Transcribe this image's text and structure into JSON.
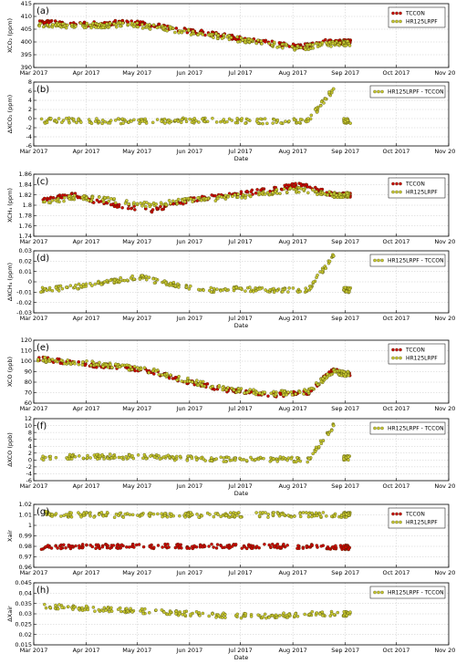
{
  "figure": {
    "date_axis_label": "Date"
  },
  "colors": {
    "tccon": "#cc0000",
    "hr125": "#c8c832",
    "diff": "#c8c832",
    "edge": "#333300"
  },
  "chart_data": [
    {
      "type": "scatter",
      "panel": "(a)",
      "ylabel": "XCO₂ (ppm)",
      "xlim": [
        "2017-03-01",
        "2017-11-01"
      ],
      "ylim": [
        390,
        415
      ],
      "yticks": [
        390,
        395,
        400,
        405,
        410,
        415
      ],
      "legend": {
        "position": "top-right",
        "entries": [
          "TCCON",
          "HR125LRPF"
        ]
      },
      "xlabel": "",
      "series": [
        {
          "name": "TCCON",
          "marker": "red",
          "x": [
            "2017-03-03",
            "2017-03-20",
            "2017-04-10",
            "2017-04-25",
            "2017-05-15",
            "2017-06-05",
            "2017-06-25",
            "2017-07-15",
            "2017-08-05",
            "2017-08-20",
            "2017-08-31"
          ],
          "y": [
            408,
            407,
            407,
            408,
            406,
            404,
            402,
            400,
            398,
            400,
            400
          ]
        },
        {
          "name": "HR125LRPF",
          "marker": "olive",
          "x": [
            "2017-03-03",
            "2017-03-20",
            "2017-04-10",
            "2017-04-25",
            "2017-05-15",
            "2017-06-05",
            "2017-06-25",
            "2017-07-15",
            "2017-08-05",
            "2017-08-20",
            "2017-08-31"
          ],
          "y": [
            407,
            406.5,
            406.5,
            407,
            405.5,
            403.5,
            401.5,
            399.5,
            397.5,
            399,
            399.5
          ]
        }
      ]
    },
    {
      "type": "scatter",
      "panel": "(b)",
      "ylabel": "ΔXCO₂ (ppm)",
      "xlim": [
        "2017-03-01",
        "2017-11-01"
      ],
      "ylim": [
        -6,
        8
      ],
      "yticks": [
        -6,
        -4,
        -2,
        0,
        2,
        4,
        6,
        8
      ],
      "legend": {
        "position": "top-right",
        "entries": [
          "HR125LRPF - TCCON"
        ]
      },
      "xlabel": "Date",
      "series": [
        {
          "name": "HR125LRPF - TCCON",
          "marker": "olive",
          "x": [
            "2017-03-05",
            "2017-03-25",
            "2017-04-15",
            "2017-05-10",
            "2017-06-01",
            "2017-06-25",
            "2017-07-20",
            "2017-08-10",
            "2017-08-25",
            "2017-08-31"
          ],
          "y": [
            -0.5,
            -0.4,
            -0.6,
            -0.5,
            -0.4,
            -0.5,
            -0.6,
            -0.5,
            6.5,
            -0.5
          ]
        }
      ]
    },
    {
      "type": "scatter",
      "panel": "(c)",
      "ylabel": "XCH₄ (ppm)",
      "xlim": [
        "2017-03-01",
        "2017-11-01"
      ],
      "ylim": [
        1.74,
        1.86
      ],
      "yticks": [
        1.74,
        1.76,
        1.78,
        1.8,
        1.82,
        1.84,
        1.86
      ],
      "legend": {
        "position": "top-right",
        "entries": [
          "TCCON",
          "HR125LRPF"
        ]
      },
      "xlabel": "",
      "series": [
        {
          "name": "TCCON",
          "marker": "red",
          "x": [
            "2017-03-05",
            "2017-03-25",
            "2017-04-15",
            "2017-05-10",
            "2017-06-01",
            "2017-06-25",
            "2017-07-20",
            "2017-08-05",
            "2017-08-25",
            "2017-08-31"
          ],
          "y": [
            1.81,
            1.82,
            1.8,
            1.79,
            1.81,
            1.82,
            1.83,
            1.84,
            1.82,
            1.82
          ]
        },
        {
          "name": "HR125LRPF",
          "marker": "olive",
          "x": [
            "2017-03-05",
            "2017-03-25",
            "2017-04-15",
            "2017-05-10",
            "2017-06-01",
            "2017-06-25",
            "2017-07-20",
            "2017-08-05",
            "2017-08-25",
            "2017-08-31"
          ],
          "y": [
            1.805,
            1.815,
            1.81,
            1.8,
            1.81,
            1.815,
            1.825,
            1.83,
            1.82,
            1.82
          ]
        }
      ]
    },
    {
      "type": "scatter",
      "panel": "(d)",
      "ylabel": "ΔXCH₄ (ppm)",
      "xlim": [
        "2017-03-01",
        "2017-11-01"
      ],
      "ylim": [
        -0.03,
        0.03
      ],
      "yticks": [
        -0.03,
        -0.02,
        -0.01,
        0.0,
        0.01,
        0.02,
        0.03
      ],
      "legend": {
        "position": "top-right",
        "entries": [
          "HR125LRPF - TCCON"
        ]
      },
      "xlabel": "Date",
      "series": [
        {
          "name": "HR125LRPF - TCCON",
          "marker": "olive",
          "x": [
            "2017-03-05",
            "2017-03-25",
            "2017-04-15",
            "2017-05-01",
            "2017-05-20",
            "2017-06-10",
            "2017-07-01",
            "2017-07-20",
            "2017-08-10",
            "2017-08-25",
            "2017-08-31"
          ],
          "y": [
            -0.008,
            -0.005,
            0.0,
            0.005,
            -0.002,
            -0.008,
            -0.007,
            -0.008,
            -0.008,
            0.025,
            -0.008
          ]
        }
      ]
    },
    {
      "type": "scatter",
      "panel": "(e)",
      "ylabel": "XCO (ppb)",
      "xlim": [
        "2017-03-01",
        "2017-11-01"
      ],
      "ylim": [
        60,
        120
      ],
      "yticks": [
        60,
        70,
        80,
        90,
        100,
        110,
        120
      ],
      "legend": {
        "position": "top-right",
        "entries": [
          "TCCON",
          "HR125LRPF"
        ]
      },
      "xlabel": "",
      "series": [
        {
          "name": "TCCON",
          "marker": "red",
          "x": [
            "2017-03-03",
            "2017-03-25",
            "2017-04-15",
            "2017-05-10",
            "2017-06-01",
            "2017-06-25",
            "2017-07-20",
            "2017-08-10",
            "2017-08-25",
            "2017-08-31"
          ],
          "y": [
            103,
            98,
            95,
            90,
            80,
            72,
            68,
            70,
            92,
            88
          ]
        },
        {
          "name": "HR125LRPF",
          "marker": "olive",
          "x": [
            "2017-03-03",
            "2017-03-25",
            "2017-04-15",
            "2017-05-10",
            "2017-06-01",
            "2017-06-25",
            "2017-07-20",
            "2017-08-10",
            "2017-08-25",
            "2017-08-31"
          ],
          "y": [
            102,
            99,
            96,
            91,
            81,
            73,
            69,
            71,
            90,
            88
          ]
        }
      ]
    },
    {
      "type": "scatter",
      "panel": "(f)",
      "ylabel": "ΔXCO (ppb)",
      "xlim": [
        "2017-03-01",
        "2017-11-01"
      ],
      "ylim": [
        -6,
        12
      ],
      "yticks": [
        -6,
        -4,
        -2,
        0,
        2,
        4,
        6,
        8,
        10,
        12
      ],
      "legend": {
        "position": "top-right",
        "entries": [
          "HR125LRPF - TCCON"
        ]
      },
      "xlabel": "Date",
      "series": [
        {
          "name": "HR125LRPF - TCCON",
          "marker": "olive",
          "x": [
            "2017-03-05",
            "2017-03-25",
            "2017-04-15",
            "2017-05-10",
            "2017-06-01",
            "2017-06-25",
            "2017-07-20",
            "2017-08-10",
            "2017-08-25",
            "2017-08-31"
          ],
          "y": [
            0.5,
            1.0,
            1.0,
            0.8,
            0.5,
            0.2,
            0.3,
            0.0,
            10.0,
            0.5
          ]
        }
      ]
    },
    {
      "type": "scatter",
      "panel": "(g)",
      "ylabel": "Xair",
      "xlim": [
        "2017-03-01",
        "2017-11-01"
      ],
      "ylim": [
        0.96,
        1.02
      ],
      "yticks": [
        0.96,
        0.97,
        0.98,
        0.99,
        1.0,
        1.01,
        1.02
      ],
      "legend": {
        "position": "top-right",
        "entries": [
          "TCCON",
          "HR125LRPF"
        ]
      },
      "xlabel": "",
      "series": [
        {
          "name": "TCCON",
          "marker": "red",
          "x": [
            "2017-03-05",
            "2017-03-25",
            "2017-04-15",
            "2017-05-10",
            "2017-06-01",
            "2017-06-25",
            "2017-07-20",
            "2017-08-10",
            "2017-08-31"
          ],
          "y": [
            0.979,
            0.98,
            0.98,
            0.98,
            0.98,
            0.98,
            0.98,
            0.98,
            0.979
          ]
        },
        {
          "name": "HR125LRPF",
          "marker": "olive",
          "x": [
            "2017-03-05",
            "2017-03-25",
            "2017-04-15",
            "2017-05-10",
            "2017-06-01",
            "2017-06-25",
            "2017-07-20",
            "2017-08-10",
            "2017-08-31"
          ],
          "y": [
            1.011,
            1.01,
            1.01,
            1.01,
            1.01,
            1.01,
            1.01,
            1.01,
            1.01
          ]
        }
      ]
    },
    {
      "type": "scatter",
      "panel": "(h)",
      "ylabel": "ΔXair",
      "xlim": [
        "2017-03-01",
        "2017-11-01"
      ],
      "ylim": [
        0.015,
        0.045
      ],
      "yticks": [
        0.015,
        0.02,
        0.025,
        0.03,
        0.035,
        0.04,
        0.045
      ],
      "legend": {
        "position": "top-right",
        "entries": [
          "HR125LRPF - TCCON"
        ]
      },
      "xlabel": "Date",
      "series": [
        {
          "name": "HR125LRPF - TCCON",
          "marker": "olive",
          "x": [
            "2017-03-05",
            "2017-03-25",
            "2017-04-15",
            "2017-05-10",
            "2017-06-01",
            "2017-06-25",
            "2017-07-20",
            "2017-08-10",
            "2017-08-31"
          ],
          "y": [
            0.034,
            0.033,
            0.032,
            0.031,
            0.03,
            0.029,
            0.029,
            0.03,
            0.03
          ]
        }
      ]
    }
  ]
}
